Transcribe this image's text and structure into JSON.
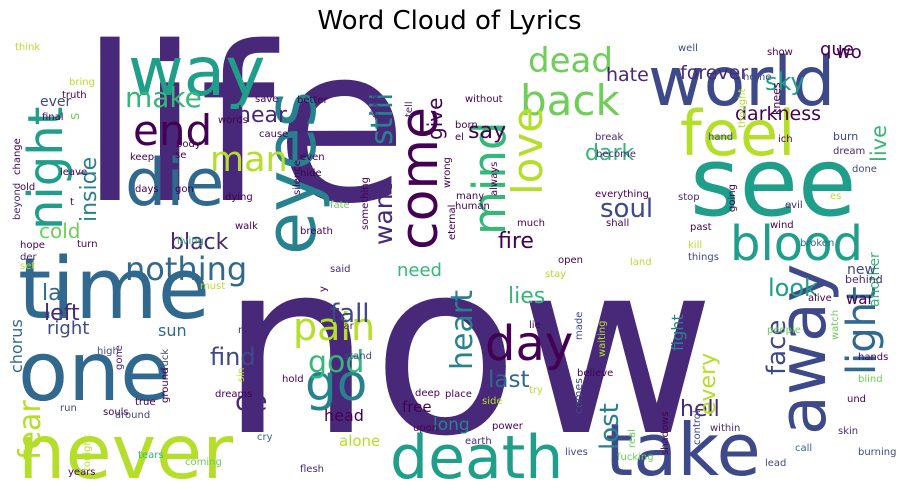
{
  "title": "Word Cloud of Lyrics",
  "palette": [
    "#440154",
    "#482878",
    "#3e4989",
    "#31688e",
    "#26828e",
    "#1f9e89",
    "#35b779",
    "#6ece58",
    "#b5de2b"
  ],
  "words": [
    {
      "text": "life",
      "color": "#482878"
    },
    {
      "text": "now",
      "color": "#482878"
    },
    {
      "text": "way",
      "color": "#1f9e89"
    },
    {
      "text": "world",
      "color": "#3e4989"
    },
    {
      "text": "see",
      "color": "#1f9e89"
    },
    {
      "text": "eyes",
      "color": "#26828e"
    },
    {
      "text": "time",
      "color": "#31688e"
    },
    {
      "text": "one",
      "color": "#31688e"
    },
    {
      "text": "never",
      "color": "#b5de2b"
    },
    {
      "text": "death",
      "color": "#1f9e89"
    },
    {
      "text": "take",
      "color": "#3e4989"
    },
    {
      "text": "die",
      "color": "#31688e"
    },
    {
      "text": "feel",
      "color": "#b5de2b"
    },
    {
      "text": "away",
      "color": "#3e4989"
    },
    {
      "text": "blood",
      "color": "#1f9e89"
    },
    {
      "text": "come",
      "color": "#440154"
    },
    {
      "text": "back",
      "color": "#6ece58"
    },
    {
      "text": "end",
      "color": "#440154"
    },
    {
      "text": "night",
      "color": "#1f9e89"
    },
    {
      "text": "light",
      "color": "#31688e"
    },
    {
      "text": "love",
      "color": "#b5de2b"
    },
    {
      "text": "mind",
      "color": "#35b779"
    },
    {
      "text": "go",
      "color": "#26828e"
    },
    {
      "text": "day",
      "color": "#440154"
    },
    {
      "text": "pain",
      "color": "#b5de2b"
    },
    {
      "text": "man",
      "color": "#b5de2b"
    },
    {
      "text": "nothing",
      "color": "#31688e"
    },
    {
      "text": "heart",
      "color": "#26828e"
    },
    {
      "text": "fear",
      "color": "#b5de2b"
    },
    {
      "text": "god",
      "color": "#35b779"
    },
    {
      "text": "still",
      "color": "#26828e"
    },
    {
      "text": "dead",
      "color": "#6ece58"
    },
    {
      "text": "want",
      "color": "#482878"
    },
    {
      "text": "lost",
      "color": "#26828e"
    },
    {
      "text": "soul",
      "color": "#3e4989"
    },
    {
      "text": "face",
      "color": "#3e4989"
    },
    {
      "text": "make",
      "color": "#35b779"
    },
    {
      "text": "inside",
      "color": "#26828e"
    },
    {
      "text": "black",
      "color": "#482878"
    },
    {
      "text": "left",
      "color": "#482878"
    },
    {
      "text": "hell",
      "color": "#482878"
    },
    {
      "text": "fire",
      "color": "#440154"
    },
    {
      "text": "last",
      "color": "#31688e"
    },
    {
      "text": "fall",
      "color": "#3e4989"
    },
    {
      "text": "sky",
      "color": "#1f9e89"
    },
    {
      "text": "say",
      "color": "#440154"
    },
    {
      "text": "dark",
      "color": "#35b779"
    },
    {
      "text": "find",
      "color": "#3e4989"
    },
    {
      "text": "de",
      "color": "#482878"
    },
    {
      "text": "hear",
      "color": "#482878"
    },
    {
      "text": "la",
      "color": "#31688e"
    },
    {
      "text": "cold",
      "color": "#6ece58"
    },
    {
      "text": "lies",
      "color": "#35b779"
    },
    {
      "text": "every",
      "color": "#b5de2b"
    },
    {
      "text": "look",
      "color": "#1f9e89"
    },
    {
      "text": "live",
      "color": "#35b779"
    },
    {
      "text": "give",
      "color": "#440154"
    },
    {
      "text": "hate",
      "color": "#482878"
    },
    {
      "text": "forever",
      "color": "#482878"
    },
    {
      "text": "darkness",
      "color": "#440154"
    },
    {
      "text": "need",
      "color": "#35b779"
    },
    {
      "text": "head",
      "color": "#440154"
    },
    {
      "text": "right",
      "color": "#3e4989"
    },
    {
      "text": "chorus",
      "color": "#31688e"
    },
    {
      "text": "long",
      "color": "#26828e"
    },
    {
      "text": "free",
      "color": "#440154"
    },
    {
      "text": "alone",
      "color": "#b5de2b"
    },
    {
      "text": "fight",
      "color": "#26828e"
    },
    {
      "text": "war",
      "color": "#440154"
    },
    {
      "text": "que",
      "color": "#440154"
    },
    {
      "text": "wo",
      "color": "#440154"
    },
    {
      "text": "another",
      "color": "#35b779"
    },
    {
      "text": "sun",
      "color": "#31688e"
    },
    {
      "text": "new",
      "color": "#3e4989"
    },
    {
      "text": "ever",
      "color": "#3e4989"
    },
    {
      "text": "s",
      "color": "#6ece58"
    },
    {
      "text": "home",
      "color": "#3e4989"
    },
    {
      "text": "show",
      "color": "#440154"
    },
    {
      "text": "well",
      "color": "#3e4989"
    },
    {
      "text": "thought",
      "color": "#b5de2b"
    },
    {
      "text": "knees",
      "color": "#440154"
    },
    {
      "text": "ich",
      "color": "#440154"
    },
    {
      "text": "burn",
      "color": "#3e4989"
    },
    {
      "text": "dream",
      "color": "#482878"
    },
    {
      "text": "done",
      "color": "#3e4989"
    },
    {
      "text": "break",
      "color": "#482878"
    },
    {
      "text": "become",
      "color": "#482878"
    },
    {
      "text": "hand",
      "color": "#3e4989"
    },
    {
      "text": "stop",
      "color": "#482878"
    },
    {
      "text": "going",
      "color": "#440154"
    },
    {
      "text": "evil",
      "color": "#482878"
    },
    {
      "text": "es",
      "color": "#b5de2b"
    },
    {
      "text": "past",
      "color": "#440154"
    },
    {
      "text": "wind",
      "color": "#440154"
    },
    {
      "text": "broken",
      "color": "#31688e"
    },
    {
      "text": "kill",
      "color": "#b5de2b"
    },
    {
      "text": "things",
      "color": "#3e4989"
    },
    {
      "text": "land",
      "color": "#b5de2b"
    },
    {
      "text": "alive",
      "color": "#440154"
    },
    {
      "text": "watch",
      "color": "#6ece58"
    },
    {
      "text": "behind",
      "color": "#482878"
    },
    {
      "text": "people",
      "color": "#6ece58"
    },
    {
      "text": "hands",
      "color": "#440154"
    },
    {
      "text": "blind",
      "color": "#6ece58"
    },
    {
      "text": "und",
      "color": "#440154"
    },
    {
      "text": "skin",
      "color": "#482878"
    },
    {
      "text": "burning",
      "color": "#3e4989"
    },
    {
      "text": "call",
      "color": "#31688e"
    },
    {
      "text": "lead",
      "color": "#3e4989"
    },
    {
      "text": "within",
      "color": "#482878"
    },
    {
      "text": "real",
      "color": "#6ece58"
    },
    {
      "text": "shadows",
      "color": "#440154"
    },
    {
      "text": "control",
      "color": "#3e4989"
    },
    {
      "text": "fucking",
      "color": "#6ece58"
    },
    {
      "text": "lives",
      "color": "#3e4989"
    },
    {
      "text": "comes",
      "color": "#3e4989"
    },
    {
      "text": "made",
      "color": "#3e4989"
    },
    {
      "text": "waiting",
      "color": "#b5de2b"
    },
    {
      "text": "stay",
      "color": "#b5de2b"
    },
    {
      "text": "open",
      "color": "#440154"
    },
    {
      "text": "power",
      "color": "#440154"
    },
    {
      "text": "try",
      "color": "#b5de2b"
    },
    {
      "text": "upon",
      "color": "#440154"
    },
    {
      "text": "earth",
      "color": "#482878"
    },
    {
      "text": "believe",
      "color": "#440154"
    },
    {
      "text": "lie",
      "color": "#440154"
    },
    {
      "text": "place",
      "color": "#440154"
    },
    {
      "text": "side",
      "color": "#b5de2b"
    },
    {
      "text": "deep",
      "color": "#440154"
    },
    {
      "text": "hold",
      "color": "#440154"
    },
    {
      "text": "stand",
      "color": "#3e4989"
    },
    {
      "text": "far",
      "color": "#482878"
    },
    {
      "text": "said",
      "color": "#482878"
    },
    {
      "text": "y",
      "color": "#440154"
    },
    {
      "text": "flesh",
      "color": "#482878"
    },
    {
      "text": "tears",
      "color": "#35b779"
    },
    {
      "text": "coming",
      "color": "#6ece58"
    },
    {
      "text": "cry",
      "color": "#31688e"
    },
    {
      "text": "dreams",
      "color": "#440154"
    },
    {
      "text": "sin",
      "color": "#b5de2b"
    },
    {
      "text": "name",
      "color": "#482878"
    },
    {
      "text": "must",
      "color": "#b5de2b"
    },
    {
      "text": "fuck",
      "color": "#3e4989"
    },
    {
      "text": "ground",
      "color": "#440154"
    },
    {
      "text": "souls",
      "color": "#440154"
    },
    {
      "text": "true",
      "color": "#440154"
    },
    {
      "text": "gone",
      "color": "#482878"
    },
    {
      "text": "high",
      "color": "#3e4989"
    },
    {
      "text": "run",
      "color": "#3e4989"
    },
    {
      "text": "years",
      "color": "#440154"
    },
    {
      "text": "tonight",
      "color": "#b5de2b"
    },
    {
      "text": "bring",
      "color": "#b5de2b"
    },
    {
      "text": "think",
      "color": "#b5de2b"
    },
    {
      "text": "truth",
      "color": "#440154"
    },
    {
      "text": "final",
      "color": "#440154"
    },
    {
      "text": "around",
      "color": "#3e4989"
    },
    {
      "text": "save",
      "color": "#440154"
    },
    {
      "text": "better",
      "color": "#440154"
    },
    {
      "text": "rise",
      "color": "#482878"
    },
    {
      "text": "without",
      "color": "#440154"
    },
    {
      "text": "close",
      "color": "#482878"
    },
    {
      "text": "tell",
      "color": "#482878"
    },
    {
      "text": "born",
      "color": "#440154"
    },
    {
      "text": "el",
      "color": "#440154"
    },
    {
      "text": "cause",
      "color": "#440154"
    },
    {
      "text": "body",
      "color": "#440154"
    },
    {
      "text": "words",
      "color": "#440154"
    },
    {
      "text": "even",
      "color": "#440154"
    },
    {
      "text": "hide",
      "color": "#440154"
    },
    {
      "text": "keep",
      "color": "#440154"
    },
    {
      "text": "se",
      "color": "#440154"
    },
    {
      "text": "gon",
      "color": "#440154"
    },
    {
      "text": "change",
      "color": "#440154"
    },
    {
      "text": "old",
      "color": "#440154"
    },
    {
      "text": "leave",
      "color": "#440154"
    },
    {
      "text": "beyond",
      "color": "#482878"
    },
    {
      "text": "hope",
      "color": "#440154"
    },
    {
      "text": "turn",
      "color": "#440154"
    },
    {
      "text": "der",
      "color": "#482878"
    },
    {
      "text": "set",
      "color": "#b5de2b"
    },
    {
      "text": "days",
      "color": "#440154"
    },
    {
      "text": "dying",
      "color": "#440154"
    },
    {
      "text": "walk",
      "color": "#440154"
    },
    {
      "text": "living",
      "color": "#35b779"
    },
    {
      "text": "silence",
      "color": "#440154"
    },
    {
      "text": "fate",
      "color": "#6ece58"
    },
    {
      "text": "breath",
      "color": "#440154"
    },
    {
      "text": "something",
      "color": "#440154"
    },
    {
      "text": "wrong",
      "color": "#440154"
    },
    {
      "text": "many",
      "color": "#440154"
    },
    {
      "text": "human",
      "color": "#440154"
    },
    {
      "text": "eternal",
      "color": "#440154"
    },
    {
      "text": "much",
      "color": "#440154"
    },
    {
      "text": "everything",
      "color": "#440154"
    },
    {
      "text": "shall",
      "color": "#440154"
    },
    {
      "text": "always",
      "color": "#440154"
    },
    {
      "text": "t",
      "color": "#440154"
    }
  ]
}
